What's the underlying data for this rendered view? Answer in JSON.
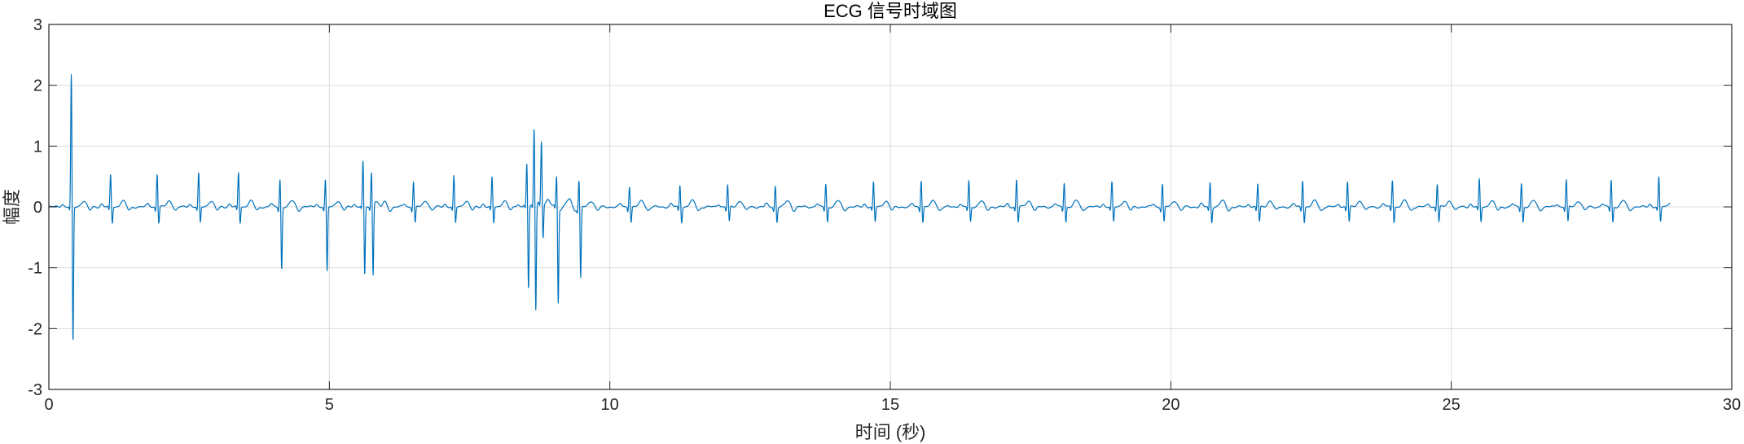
{
  "chart_data": {
    "type": "line",
    "title": "ECG 信号时域图",
    "xlabel": "时间 (秒)",
    "ylabel": "幅度",
    "xlim": [
      0,
      30
    ],
    "ylim": [
      -3,
      3
    ],
    "xticks": [
      0,
      5,
      10,
      15,
      20,
      25,
      30
    ],
    "yticks": [
      -3,
      -2,
      -1,
      0,
      1,
      2,
      3
    ],
    "grid": true,
    "line_color": "#0072BD",
    "series": [
      {
        "beats": [
          {
            "t": 0.4,
            "r": 2.18,
            "s": -2.25
          },
          {
            "t": 1.1,
            "r": 0.52,
            "s": -0.27
          },
          {
            "t": 1.93,
            "r": 0.55,
            "s": -0.27
          },
          {
            "t": 2.67,
            "r": 0.55,
            "s": -0.27
          },
          {
            "t": 3.38,
            "r": 0.56,
            "s": -0.27
          },
          {
            "t": 4.12,
            "r": 0.46,
            "s": -1.03
          },
          {
            "t": 4.93,
            "r": 0.44,
            "s": -1.07
          },
          {
            "t": 5.6,
            "r": 0.7,
            "s": -1.15
          },
          {
            "t": 5.75,
            "r": 0.55,
            "s": -1.18
          },
          {
            "t": 6.5,
            "r": 0.42,
            "s": -0.27
          },
          {
            "t": 7.22,
            "r": 0.5,
            "s": -0.27
          },
          {
            "t": 7.9,
            "r": 0.48,
            "s": -0.27
          },
          {
            "t": 8.52,
            "r": 0.68,
            "s": -1.38
          },
          {
            "t": 8.65,
            "r": 1.27,
            "s": -1.75
          },
          {
            "t": 8.78,
            "r": 1.0,
            "s": -0.58
          },
          {
            "t": 9.05,
            "r": 0.48,
            "s": -1.57
          },
          {
            "t": 9.45,
            "r": 0.44,
            "s": -1.18
          },
          {
            "t": 10.35,
            "r": 0.35,
            "s": -0.25
          },
          {
            "t": 11.25,
            "r": 0.36,
            "s": -0.25
          },
          {
            "t": 12.1,
            "r": 0.36,
            "s": -0.25
          },
          {
            "t": 12.95,
            "r": 0.35,
            "s": -0.25
          },
          {
            "t": 13.85,
            "r": 0.38,
            "s": -0.25
          },
          {
            "t": 14.7,
            "r": 0.4,
            "s": -0.25
          },
          {
            "t": 15.55,
            "r": 0.45,
            "s": -0.25
          },
          {
            "t": 16.4,
            "r": 0.42,
            "s": -0.25
          },
          {
            "t": 17.25,
            "r": 0.45,
            "s": -0.25
          },
          {
            "t": 18.1,
            "r": 0.4,
            "s": -0.25
          },
          {
            "t": 18.95,
            "r": 0.4,
            "s": -0.25
          },
          {
            "t": 19.85,
            "r": 0.38,
            "s": -0.25
          },
          {
            "t": 20.7,
            "r": 0.4,
            "s": -0.25
          },
          {
            "t": 21.55,
            "r": 0.38,
            "s": -0.25
          },
          {
            "t": 22.35,
            "r": 0.45,
            "s": -0.25
          },
          {
            "t": 23.15,
            "r": 0.42,
            "s": -0.25
          },
          {
            "t": 23.95,
            "r": 0.45,
            "s": -0.25
          },
          {
            "t": 24.75,
            "r": 0.38,
            "s": -0.25
          },
          {
            "t": 25.5,
            "r": 0.45,
            "s": -0.25
          },
          {
            "t": 26.25,
            "r": 0.4,
            "s": -0.25
          },
          {
            "t": 27.05,
            "r": 0.45,
            "s": -0.25
          },
          {
            "t": 27.85,
            "r": 0.45,
            "s": -0.25
          },
          {
            "t": 28.7,
            "r": 0.48,
            "s": -0.25
          }
        ],
        "t_end": 28.9
      }
    ]
  }
}
